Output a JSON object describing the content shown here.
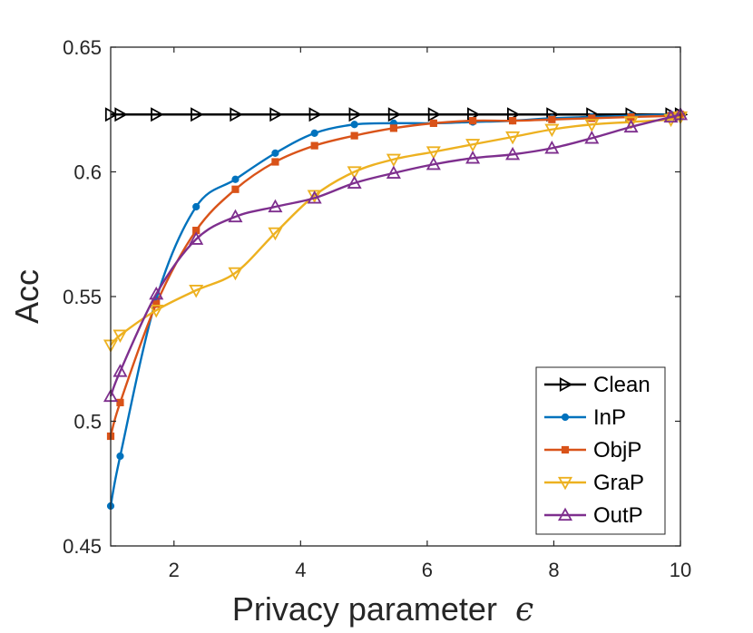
{
  "chart_data": {
    "type": "line",
    "title": "",
    "xlabel": "Privacy parameter",
    "xlabel_symbol": "ϵ",
    "ylabel": "Acc",
    "xlim": [
      1,
      10
    ],
    "ylim": [
      0.45,
      0.65
    ],
    "xticks": [
      2,
      4,
      6,
      8,
      10
    ],
    "xtick_labels": [
      "2",
      "4",
      "6",
      "8",
      "10"
    ],
    "yticks": [
      0.45,
      0.5,
      0.55,
      0.6,
      0.65
    ],
    "ytick_labels": [
      "0.45",
      "0.5",
      "0.55",
      "0.6",
      "0.65"
    ],
    "grid": false,
    "legend_position": "bottom-right",
    "x": [
      1.0,
      1.15,
      1.72,
      2.35,
      2.97,
      3.6,
      4.22,
      4.85,
      5.47,
      6.1,
      6.72,
      7.35,
      7.97,
      8.6,
      9.22,
      9.85,
      10.0
    ],
    "series": [
      {
        "name": "Clean",
        "color": "#000000",
        "marker": "triangle-right",
        "values": [
          0.623,
          0.623,
          0.623,
          0.623,
          0.623,
          0.623,
          0.623,
          0.623,
          0.623,
          0.623,
          0.623,
          0.623,
          0.623,
          0.623,
          0.623,
          0.623,
          0.623
        ]
      },
      {
        "name": "InP",
        "color": "#0072BD",
        "marker": "circle",
        "values": [
          0.466,
          0.486,
          0.549,
          0.586,
          0.597,
          0.6075,
          0.6155,
          0.619,
          0.6195,
          0.6195,
          0.62,
          0.6205,
          0.6215,
          0.622,
          0.6225,
          0.623,
          0.623
        ]
      },
      {
        "name": "ObjP",
        "color": "#D95319",
        "marker": "square",
        "values": [
          0.494,
          0.5075,
          0.547,
          0.5765,
          0.593,
          0.604,
          0.6105,
          0.6145,
          0.6175,
          0.6195,
          0.6205,
          0.6205,
          0.621,
          0.6215,
          0.622,
          0.6225,
          0.623
        ]
      },
      {
        "name": "GraP",
        "color": "#EDB120",
        "marker": "triangle-down",
        "values": [
          0.5305,
          0.5345,
          0.5445,
          0.5525,
          0.5595,
          0.5755,
          0.5905,
          0.6,
          0.605,
          0.608,
          0.611,
          0.614,
          0.617,
          0.619,
          0.62,
          0.621,
          0.622
        ]
      },
      {
        "name": "OutP",
        "color": "#7E2F8E",
        "marker": "triangle-up",
        "values": [
          0.51,
          0.52,
          0.551,
          0.573,
          0.582,
          0.586,
          0.5895,
          0.5955,
          0.5995,
          0.603,
          0.6055,
          0.607,
          0.6095,
          0.6135,
          0.618,
          0.622,
          0.623
        ]
      }
    ]
  }
}
